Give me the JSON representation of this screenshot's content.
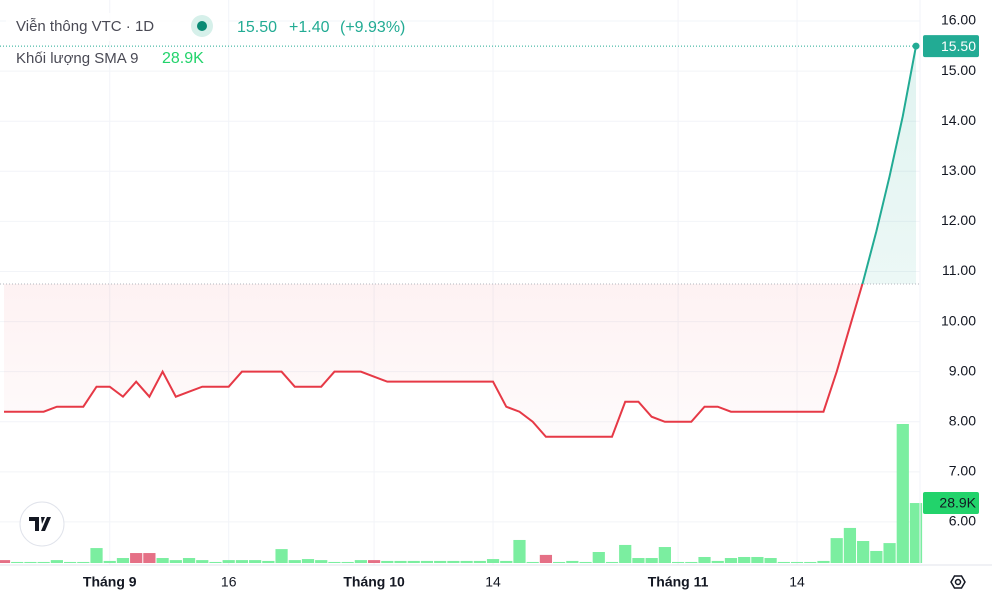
{
  "chart_data": {
    "type": "baseline",
    "title": "Viễn thông VTC · 1D",
    "last": {
      "value": 15.5,
      "label": "15.50"
    },
    "change": {
      "value": 1.4,
      "label": "+1.40"
    },
    "change_pct": {
      "value": 9.93,
      "label": "(+9.93%)"
    },
    "baseline": 10.75,
    "color_up": "#22ab94",
    "color_down": "#e63946",
    "categories": [
      null,
      null,
      null,
      null,
      null,
      null,
      null,
      null,
      "Tháng 9",
      null,
      null,
      null,
      null,
      null,
      null,
      null,
      null,
      "16",
      null,
      null,
      null,
      null,
      null,
      null,
      null,
      null,
      null,
      null,
      "Tháng 10",
      null,
      null,
      null,
      null,
      null,
      null,
      null,
      null,
      "14",
      null,
      null,
      null,
      null,
      null,
      null,
      null,
      null,
      null,
      null,
      null,
      null,
      null,
      "Tháng 11",
      null,
      null,
      null,
      null,
      null,
      null,
      null,
      null,
      "14",
      null,
      null,
      null,
      null,
      null,
      null,
      null,
      null,
      null
    ],
    "values": [
      8.2,
      8.2,
      8.2,
      8.2,
      8.3,
      8.3,
      8.3,
      8.7,
      8.7,
      8.5,
      8.8,
      8.5,
      9.0,
      8.5,
      8.6,
      8.7,
      8.7,
      8.7,
      9.0,
      9.0,
      9.0,
      9.0,
      8.7,
      8.7,
      8.7,
      9.0,
      9.0,
      9.0,
      8.9,
      8.8,
      8.8,
      8.8,
      8.8,
      8.8,
      8.8,
      8.8,
      8.8,
      8.8,
      8.3,
      8.2,
      8.0,
      7.7,
      7.7,
      7.7,
      7.7,
      7.7,
      7.7,
      8.4,
      8.4,
      8.1,
      8.0,
      8.0,
      8.0,
      8.3,
      8.3,
      8.2,
      8.2,
      8.2,
      8.2,
      8.2,
      8.2,
      8.2,
      8.2,
      9.0,
      9.9,
      10.8,
      11.8,
      12.9,
      14.1,
      15.5
    ],
    "ylim": [
      5.18,
      16.42
    ],
    "yticks": [
      {
        "value": 6,
        "label": "6.00"
      },
      {
        "value": 7,
        "label": "7.00"
      },
      {
        "value": 8,
        "label": "8.00"
      },
      {
        "value": 9,
        "label": "9.00"
      },
      {
        "value": 10,
        "label": "10.00"
      },
      {
        "value": 11,
        "label": "11.00"
      },
      {
        "value": 12,
        "label": "12.00"
      },
      {
        "value": 13,
        "label": "13.00"
      },
      {
        "value": 14,
        "label": "14.00"
      },
      {
        "value": 15,
        "label": "15.00"
      },
      {
        "value": 16,
        "label": "16.00"
      }
    ],
    "grid": true,
    "volume": {
      "title": "Khối lượng SMA 9",
      "last": {
        "value": 28900,
        "label": "28.9K"
      },
      "color": "#22d36b",
      "values": [
        1400,
        500,
        500,
        500,
        1400,
        500,
        500,
        7200,
        1000,
        2400,
        4800,
        4800,
        2400,
        1400,
        2400,
        1400,
        500,
        1400,
        1400,
        1400,
        1000,
        6700,
        1400,
        1900,
        1400,
        500,
        500,
        1400,
        1400,
        1000,
        1000,
        1000,
        1000,
        1000,
        1000,
        1000,
        1000,
        1900,
        1000,
        11100,
        500,
        3900,
        500,
        1000,
        500,
        5300,
        500,
        8700,
        2400,
        2400,
        7700,
        500,
        500,
        2900,
        1000,
        2400,
        2900,
        2900,
        2400,
        500,
        500,
        500,
        1000,
        12000,
        16900,
        10600,
        5800,
        9600,
        67000,
        28900
      ],
      "colors": [
        "#e57086",
        "#7beea0",
        "#7beea0",
        "#7beea0",
        "#7beea0",
        "#7beea0",
        "#7beea0",
        "#7beea0",
        "#7beea0",
        "#7beea0",
        "#e57086",
        "#e57086",
        "#7beea0",
        "#7beea0",
        "#7beea0",
        "#7beea0",
        "#7beea0",
        "#7beea0",
        "#7beea0",
        "#7beea0",
        "#7beea0",
        "#7beea0",
        "#7beea0",
        "#7beea0",
        "#7beea0",
        "#7beea0",
        "#7beea0",
        "#7beea0",
        "#e57086",
        "#7beea0",
        "#7beea0",
        "#7beea0",
        "#7beea0",
        "#7beea0",
        "#7beea0",
        "#7beea0",
        "#7beea0",
        "#7beea0",
        "#7beea0",
        "#7beea0",
        "#7beea0",
        "#e57086",
        "#7beea0",
        "#7beea0",
        "#7beea0",
        "#7beea0",
        "#7beea0",
        "#7beea0",
        "#7beea0",
        "#7beea0",
        "#7beea0",
        "#7beea0",
        "#7beea0",
        "#7beea0",
        "#7beea0",
        "#7beea0",
        "#7beea0",
        "#7beea0",
        "#7beea0",
        "#7beea0",
        "#7beea0",
        "#7beea0",
        "#7beea0",
        "#7beea0",
        "#7beea0",
        "#7beea0",
        "#7beea0",
        "#7beea0",
        "#7beea0",
        "#7beea0"
      ]
    }
  }
}
